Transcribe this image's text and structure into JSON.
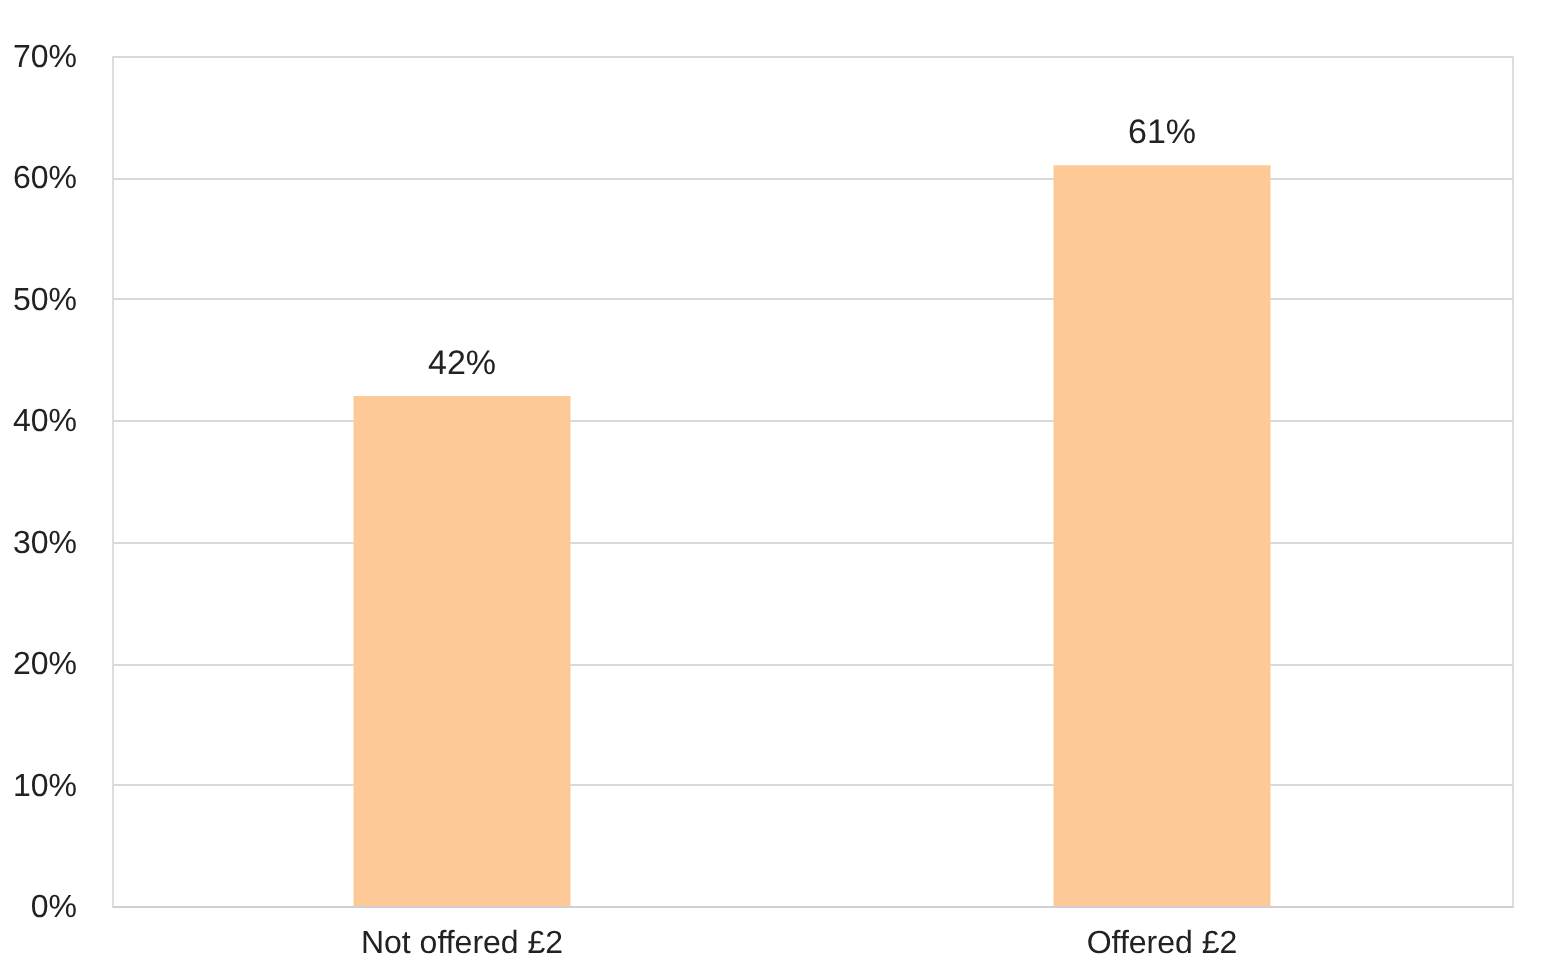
{
  "chart_data": {
    "type": "bar",
    "categories": [
      "Not offered £2",
      "Offered £2"
    ],
    "values": [
      42,
      61
    ],
    "value_labels": [
      "42%",
      "61%"
    ],
    "color": "#fdc996",
    "ylim": [
      0,
      70
    ],
    "yticks": [
      {
        "value": 0,
        "label": "0%"
      },
      {
        "value": 10,
        "label": "10%"
      },
      {
        "value": 20,
        "label": "20%"
      },
      {
        "value": 30,
        "label": "30%"
      },
      {
        "value": 40,
        "label": "40%"
      },
      {
        "value": 50,
        "label": "50%"
      },
      {
        "value": 60,
        "label": "60%"
      },
      {
        "value": 70,
        "label": "70%"
      }
    ],
    "grid": "y"
  }
}
